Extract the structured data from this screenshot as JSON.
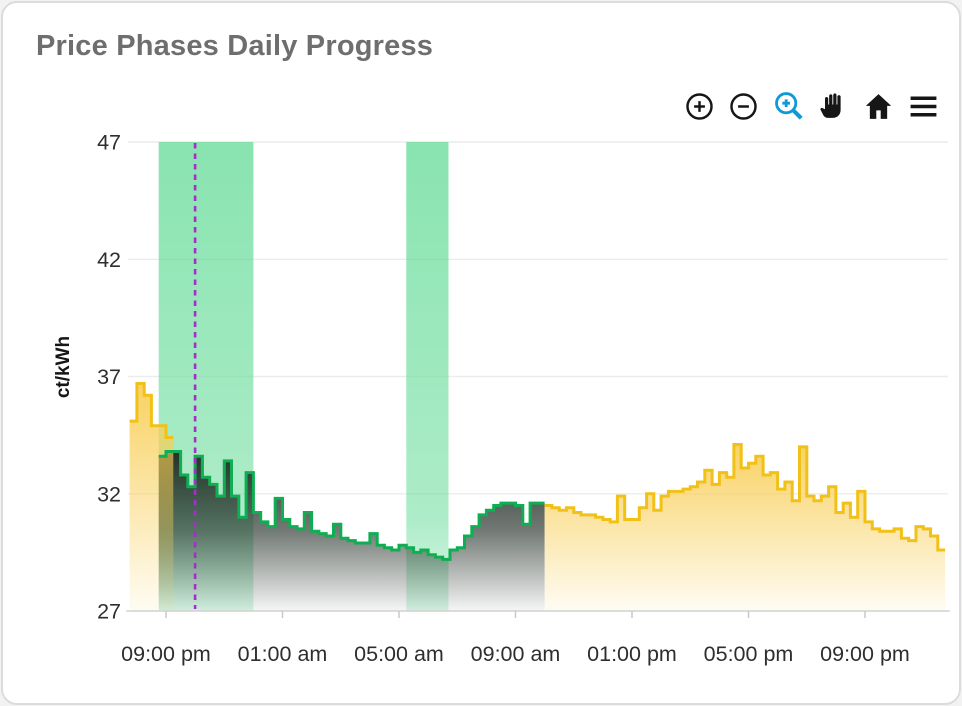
{
  "header": {
    "title": "Price Phases Daily Progress"
  },
  "toolbar": {
    "icon_color": "#161616",
    "active_color": "#0D9BD8",
    "items": [
      {
        "name": "zoom-in",
        "active": false
      },
      {
        "name": "zoom-out",
        "active": false
      },
      {
        "name": "selection-zoom",
        "active": true
      },
      {
        "name": "pan",
        "active": false
      },
      {
        "name": "reset-home",
        "active": false
      },
      {
        "name": "menu",
        "active": false
      }
    ]
  },
  "chart_data": {
    "type": "area",
    "step": true,
    "title": "Price Phases Daily Progress",
    "ylabel": "ct/kWh",
    "ylim": [
      27,
      47
    ],
    "yticks": [
      27,
      32,
      37,
      42,
      47
    ],
    "grid": true,
    "legend": "none",
    "x_unit": "hours relative to first 09:00 pm tick; each step is 15 minutes",
    "xticks": [
      {
        "t": 0,
        "label": "09:00 pm"
      },
      {
        "t": 4,
        "label": "01:00 am"
      },
      {
        "t": 8,
        "label": "05:00 am"
      },
      {
        "t": 12,
        "label": "09:00 am"
      },
      {
        "t": 16,
        "label": "01:00 pm"
      },
      {
        "t": 20,
        "label": "05:00 pm"
      },
      {
        "t": 24,
        "label": "09:00 pm"
      }
    ],
    "series": [
      {
        "name": "price-evening-yellow",
        "color": "#F2C117",
        "fill": "yellow",
        "t0": -1.25,
        "step_h": 0.25,
        "values": [
          35.1,
          36.7,
          36.2,
          34.9,
          34.9,
          34.4
        ]
      },
      {
        "name": "price-green-phase",
        "color": "#0FAE52",
        "fill": "dark",
        "t0": -0.25,
        "step_h": 0.25,
        "values": [
          33.6,
          33.8,
          33.8,
          32.8,
          32.3,
          33.6,
          32.7,
          32.4,
          31.9,
          33.4,
          31.9,
          31.0,
          32.9,
          31.2,
          30.8,
          30.6,
          31.8,
          30.9,
          30.6,
          30.5,
          31.2,
          30.4,
          30.3,
          30.2,
          30.7,
          30.1,
          30.0,
          29.9,
          29.9,
          30.3,
          29.8,
          29.7,
          29.6,
          29.8,
          29.7,
          29.5,
          29.6,
          29.4,
          29.3,
          29.2,
          29.6,
          29.7,
          30.2,
          30.6,
          31.1,
          31.3,
          31.5,
          31.6,
          31.6,
          31.5,
          30.7,
          31.6,
          31.6
        ]
      },
      {
        "name": "price-daytime-yellow",
        "color": "#F2C117",
        "fill": "yellow",
        "t0": 13.0,
        "step_h": 0.25,
        "values": [
          31.5,
          31.4,
          31.3,
          31.4,
          31.2,
          31.1,
          31.1,
          31.0,
          30.9,
          30.8,
          31.9,
          30.9,
          30.9,
          31.4,
          32.0,
          31.3,
          31.9,
          32.1,
          32.1,
          32.2,
          32.3,
          32.5,
          33.0,
          32.4,
          32.9,
          32.7,
          34.1,
          33.1,
          33.3,
          33.6,
          32.8,
          32.9,
          32.2,
          32.5,
          31.7,
          34.0,
          31.9,
          31.7,
          31.9,
          32.3,
          31.2,
          31.6,
          31.0,
          32.1,
          30.8,
          30.5,
          30.4,
          30.4,
          30.5,
          30.1,
          30.0,
          30.6,
          30.5,
          30.2,
          29.6
        ]
      }
    ],
    "highlight_bands": [
      {
        "name": "green-phase-band-1",
        "t_from": -0.25,
        "t_to": 3.0,
        "color": "#5FDA94"
      },
      {
        "name": "green-phase-band-2",
        "t_from": 8.25,
        "t_to": 9.7,
        "color": "#5FDA94"
      }
    ],
    "now_line": {
      "t": 1.0,
      "color": "#A22FC8",
      "style": "dashed"
    }
  }
}
